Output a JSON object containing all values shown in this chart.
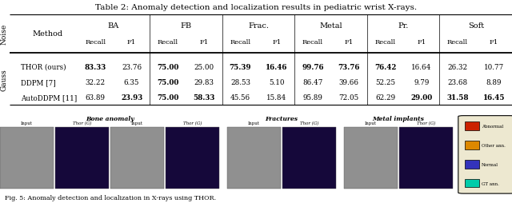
{
  "title": "Table 2: Anomaly detection and localization results in pediatric wrist X-rays.",
  "col_groups": [
    "BA",
    "FB",
    "Frac.",
    "Metal",
    "Pr.",
    "Soft"
  ],
  "sub_cols": [
    "Recall",
    "F1"
  ],
  "noise_label": "Noise",
  "gauss_label": "Gauss",
  "methods": [
    "THOR (ours)",
    "DDPM [7]",
    "AutoDDPM [11]"
  ],
  "data": [
    [
      83.33,
      23.76,
      75.0,
      25.0,
      75.39,
      16.46,
      99.76,
      73.76,
      76.42,
      16.64,
      26.32,
      10.77
    ],
    [
      32.22,
      6.35,
      75.0,
      29.83,
      28.53,
      5.1,
      86.47,
      39.66,
      52.25,
      9.79,
      23.68,
      8.89
    ],
    [
      63.89,
      23.93,
      75.0,
      58.33,
      45.56,
      15.84,
      95.89,
      72.05,
      62.29,
      29.0,
      31.58,
      16.45
    ]
  ],
  "bold_cells": [
    [
      true,
      false,
      true,
      false,
      true,
      true,
      true,
      true,
      true,
      false,
      false,
      false
    ],
    [
      false,
      false,
      true,
      false,
      false,
      false,
      false,
      false,
      false,
      false,
      false,
      false
    ],
    [
      false,
      true,
      true,
      true,
      false,
      false,
      false,
      false,
      false,
      true,
      true,
      true
    ]
  ],
  "fig_caption": "Fig. 5: Anomaly detection and localization in X-rays using THOR.",
  "group_labels": [
    "Bone anomaly",
    "Fractures",
    "Metal implants"
  ],
  "sub_img_labels": [
    "Input",
    "Thor (G)"
  ],
  "legend_items": [
    {
      "label": "Abnormal",
      "color": "#cc2200"
    },
    {
      "label": "Other ann.",
      "color": "#dd8800"
    },
    {
      "label": "Normal",
      "color": "#3333bb"
    },
    {
      "label": "GT ann.",
      "color": "#00ccaa"
    }
  ]
}
